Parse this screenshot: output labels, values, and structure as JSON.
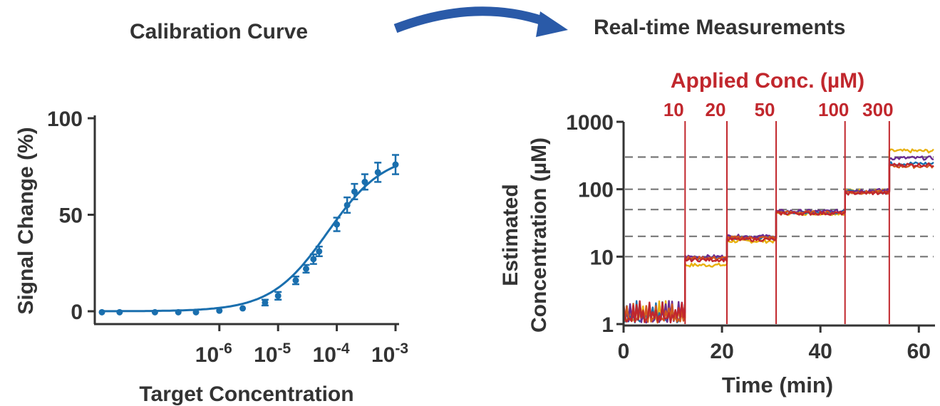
{
  "headings": {
    "left": "Calibration Curve",
    "right": "Real-time Measurements"
  },
  "colors": {
    "arrow": "#2a5aa8",
    "calibration": "#1a6fae",
    "applied": "#c1272d",
    "text": "#333333",
    "reference": "#777777",
    "traces": [
      "#e8b10e",
      "#1a6fae",
      "#6a2c91",
      "#d1581f",
      "#c1272d"
    ]
  },
  "chart_data": [
    {
      "type": "scatter",
      "title": "Calibration Curve",
      "xlabel": "Target Concentration",
      "ylabel": "Signal Change (%)",
      "xscale": "log",
      "xlim": [
        1e-08,
        0.001
      ],
      "ylim": [
        0,
        100
      ],
      "xticks": [
        1e-06,
        1e-05,
        0.0001,
        0.001
      ],
      "xtick_labels": [
        {
          "base": "10",
          "exp": "-6"
        },
        {
          "base": "10",
          "exp": "-5"
        },
        {
          "base": "10",
          "exp": "-4"
        },
        {
          "base": "10",
          "exp": "-3"
        }
      ],
      "yticks": [
        0,
        50,
        100
      ],
      "ytick_labels": [
        "0",
        "50",
        "100"
      ],
      "grid": false,
      "fit_curve": {
        "model": "hill",
        "bottom": 0,
        "top": 82,
        "ec50": 7e-05,
        "hill": 0.9
      },
      "series": [
        {
          "x": [
            1e-08,
            2e-08,
            8e-08,
            2e-07,
            4e-07,
            1e-06,
            2.5e-06,
            6e-06,
            1e-05,
            2e-05,
            3e-05,
            4e-05,
            5e-05,
            0.0001,
            0.00015,
            0.0002,
            0.0003,
            0.0005,
            0.001
          ],
          "y": [
            -0.5,
            -0.5,
            -0.5,
            -0.5,
            -0.5,
            0.3,
            1.5,
            4.5,
            8,
            16,
            22,
            27,
            31,
            45,
            55,
            62,
            67,
            72,
            76
          ],
          "error": [
            0.8,
            0.8,
            0.8,
            0.8,
            0.8,
            1,
            1,
            1.5,
            2,
            2,
            2,
            2.5,
            2.5,
            3.5,
            4,
            4,
            4,
            5,
            5
          ]
        }
      ]
    },
    {
      "type": "line",
      "title": "",
      "annotation_title": "Applied Conc. (µM)",
      "xlabel": "Time (min)",
      "ylabel_lines": [
        "Estimated",
        "Concentration (µM)"
      ],
      "yscale": "log",
      "xlim": [
        0,
        63
      ],
      "ylim": [
        1,
        1000
      ],
      "xticks": [
        0,
        20,
        40,
        60
      ],
      "xtick_labels": [
        "0",
        "20",
        "40",
        "60"
      ],
      "yticks": [
        1,
        10,
        100,
        1000
      ],
      "ytick_labels": [
        "1",
        "10",
        "100",
        "1000"
      ],
      "applied": [
        {
          "t": 12.5,
          "label": "10"
        },
        {
          "t": 21,
          "label": "20"
        },
        {
          "t": 31,
          "label": "50"
        },
        {
          "t": 45,
          "label": "100"
        },
        {
          "t": 54,
          "label": "300"
        }
      ],
      "reference_levels": [
        10,
        20,
        50,
        100,
        300
      ],
      "segments": [
        {
          "t0": 0,
          "t1": 12.5,
          "levels": [
            1.15,
            1.2,
            1.15,
            1.1,
            1.15
          ]
        },
        {
          "t0": 12.5,
          "t1": 21,
          "levels": [
            7.5,
            9.5,
            10,
            9.5,
            9
          ]
        },
        {
          "t0": 21,
          "t1": 31,
          "levels": [
            17,
            19,
            20,
            19,
            18
          ]
        },
        {
          "t0": 31,
          "t1": 45,
          "levels": [
            44,
            46,
            47,
            45,
            44
          ]
        },
        {
          "t0": 45,
          "t1": 54,
          "levels": [
            95,
            92,
            96,
            90,
            88
          ]
        },
        {
          "t0": 54,
          "t1": 63,
          "levels": [
            370,
            240,
            290,
            220,
            230
          ]
        }
      ]
    }
  ]
}
